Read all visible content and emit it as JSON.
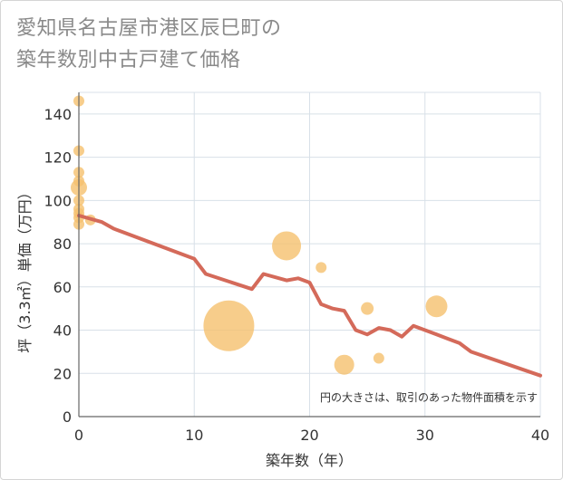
{
  "title_lines": [
    "愛知県名古屋市港区辰巳町の",
    "築年数別中古戸建て価格"
  ],
  "chart_data": {
    "type": "scatter+line",
    "title": "愛知県名古屋市港区辰巳町の築年数別中古戸建て価格",
    "xlabel": "築年数（年）",
    "ylabel": "坪（3.3㎡）単価（万円）",
    "xlim": [
      0,
      40
    ],
    "ylim": [
      0,
      150
    ],
    "x_ticks": [
      0,
      10,
      20,
      30,
      40
    ],
    "y_ticks": [
      0,
      20,
      40,
      60,
      80,
      100,
      120,
      140
    ],
    "grid": true,
    "note": "円の大きさは、取引のあった物件面積を示す",
    "colors": {
      "bubble": "#f5c06e",
      "line": "#d46a5a",
      "grid": "#d8e0e8",
      "axis": "#666666"
    },
    "scatter": [
      {
        "x": 0,
        "y": 146,
        "size": 6
      },
      {
        "x": 0,
        "y": 123,
        "size": 6
      },
      {
        "x": 0,
        "y": 113,
        "size": 6
      },
      {
        "x": 0,
        "y": 109,
        "size": 6
      },
      {
        "x": 0,
        "y": 106,
        "size": 9
      },
      {
        "x": 0,
        "y": 100,
        "size": 6
      },
      {
        "x": 0,
        "y": 96,
        "size": 6
      },
      {
        "x": 0,
        "y": 94,
        "size": 6
      },
      {
        "x": 0,
        "y": 92,
        "size": 6
      },
      {
        "x": 0,
        "y": 89,
        "size": 6
      },
      {
        "x": 1,
        "y": 91,
        "size": 6
      },
      {
        "x": 13,
        "y": 42,
        "size": 28
      },
      {
        "x": 18,
        "y": 79,
        "size": 16
      },
      {
        "x": 21,
        "y": 69,
        "size": 6
      },
      {
        "x": 23,
        "y": 24,
        "size": 11
      },
      {
        "x": 25,
        "y": 50,
        "size": 7
      },
      {
        "x": 26,
        "y": 27,
        "size": 6
      },
      {
        "x": 31,
        "y": 51,
        "size": 12
      }
    ],
    "trend": {
      "x": [
        0,
        2,
        3,
        10,
        11,
        15,
        16,
        18,
        19,
        20,
        21,
        22,
        23,
        24,
        25,
        26,
        27,
        28,
        29,
        30,
        31,
        32,
        33,
        34,
        40
      ],
      "y": [
        93,
        90,
        87,
        73,
        66,
        59,
        66,
        63,
        64,
        62,
        52,
        50,
        49,
        40,
        38,
        41,
        40,
        37,
        42,
        40,
        38,
        36,
        34,
        30,
        19
      ]
    }
  }
}
